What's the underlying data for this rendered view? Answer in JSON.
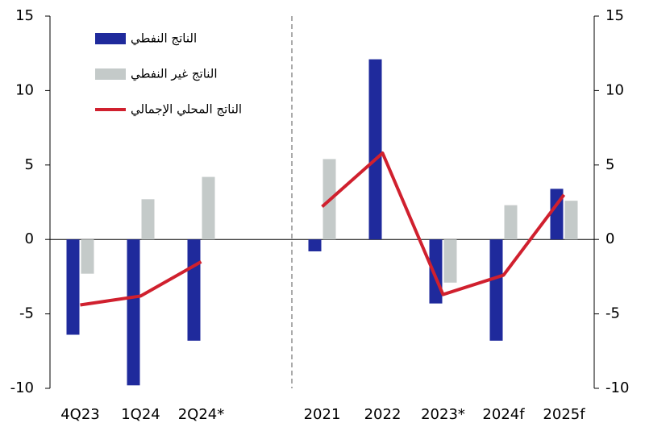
{
  "chart_data": {
    "type": "bar",
    "categories": [
      "4Q23",
      "1Q24",
      "2Q24*",
      null,
      "2021",
      "2022",
      "2023*",
      "2024f",
      "2025f"
    ],
    "series": [
      {
        "name": "الناتج النفطي",
        "type": "bar",
        "color": "#1f2a9c",
        "values": [
          -6.4,
          -9.8,
          -6.8,
          null,
          -0.8,
          12.1,
          -4.3,
          -6.8,
          3.4
        ]
      },
      {
        "name": "الناتج غير النفطي",
        "type": "bar",
        "color": "#c4cac9",
        "values": [
          -2.3,
          2.7,
          4.2,
          null,
          5.4,
          null,
          -2.9,
          2.3,
          2.6
        ]
      },
      {
        "name": "الناتج المحلي الإجمالي",
        "type": "line",
        "color": "#d0202e",
        "values": [
          -4.4,
          -3.8,
          -1.5,
          null,
          2.2,
          5.8,
          -3.7,
          -2.4,
          3.0
        ]
      }
    ],
    "ylim": [
      -10,
      15
    ],
    "yticks": [
      -10,
      -5,
      0,
      5,
      10,
      15
    ],
    "y2lim": [
      -10,
      15
    ],
    "y2ticks": [
      -10,
      -5,
      0,
      5,
      10,
      15
    ],
    "legend": "top-left"
  }
}
